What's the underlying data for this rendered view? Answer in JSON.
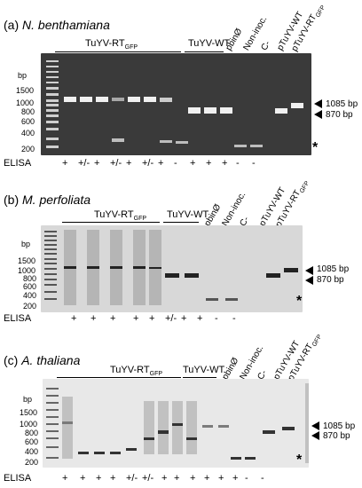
{
  "panels": [
    {
      "id": "a",
      "letter": "(a)",
      "species": "N. benthamiana",
      "group1": "TuYV-RT",
      "group1_sub": "GFP",
      "group2": "TuYV-WT",
      "lanes": [
        "pbinØ",
        "Non-inoc.",
        "C-",
        "pTuYV-WT",
        "pTuYV-RT"
      ],
      "lane_last_sub": "GFP",
      "bp_label": "bp",
      "ladder": [
        "1500",
        "1000",
        "800",
        "600",
        "400",
        "200"
      ],
      "markers": [
        "1085 bp",
        "870 bp"
      ],
      "elisa_label": "ELISA",
      "elisa": [
        "+",
        "+/-",
        "+",
        "+/-",
        "+",
        "+/-",
        "+",
        "-",
        "+",
        "+",
        "+",
        "-",
        "-"
      ]
    },
    {
      "id": "b",
      "letter": "(b)",
      "species": "M. perfoliata",
      "group1": "TuYV-RT",
      "group1_sub": "GFP",
      "group2": "TuYV-WT",
      "lanes": [
        "pbinØ",
        "Non-inoc.",
        "C-",
        "pTuYV-WT",
        "pTuYV-RT"
      ],
      "lane_last_sub": "GFP",
      "bp_label": "bp",
      "ladder": [
        "1500",
        "1000",
        "800",
        "600",
        "400",
        "200"
      ],
      "markers": [
        "1085 bp",
        "870 bp"
      ],
      "elisa_label": "ELISA",
      "elisa": [
        "+",
        "+",
        "+",
        "+",
        "+",
        "+/-",
        "+",
        "+",
        "-",
        "-"
      ]
    },
    {
      "id": "c",
      "letter": "(c)",
      "species": "A. thaliana",
      "group1": "TuYV-RT",
      "group1_sub": "GFP",
      "group2": "TuYV-WT",
      "lanes": [
        "pbinØ",
        "Non-inoc.",
        "C-",
        "pTuYV-WT",
        "pTuYV-RT"
      ],
      "lane_last_sub": "GFP",
      "bp_label": "bp",
      "ladder": [
        "1500",
        "1000",
        "800",
        "600",
        "400",
        "200"
      ],
      "markers": [
        "1085 bp",
        "870 bp"
      ],
      "elisa_label": "ELISA",
      "elisa": [
        "+",
        "+",
        "+",
        "+",
        "+/-",
        "+/-",
        "+",
        "+",
        "+",
        "+",
        "+",
        "+",
        "-",
        "-"
      ]
    }
  ],
  "asterisk": "*"
}
